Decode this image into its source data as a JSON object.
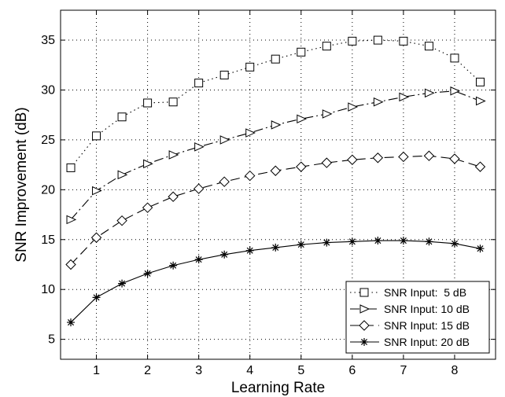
{
  "chart_data": {
    "type": "line",
    "title": "",
    "xlabel": "Learning Rate",
    "ylabel": "SNR Improvement (dB)",
    "xlim": [
      0.3,
      8.8
    ],
    "ylim": [
      3,
      38
    ],
    "xticks": [
      1,
      2,
      3,
      4,
      5,
      6,
      7,
      8
    ],
    "yticks": [
      5,
      10,
      15,
      20,
      25,
      30,
      35
    ],
    "grid": true,
    "legend_position": "bottom-right",
    "x": [
      0.5,
      1.0,
      1.5,
      2.0,
      2.5,
      3.0,
      3.5,
      4.0,
      4.5,
      5.0,
      5.5,
      6.0,
      6.5,
      7.0,
      7.5,
      8.0,
      8.5
    ],
    "series": [
      {
        "name": "SNR Input:  5 dB",
        "marker": "square",
        "line_style": "dotted",
        "values": [
          22.2,
          25.4,
          27.3,
          28.7,
          28.8,
          30.7,
          31.5,
          32.3,
          33.1,
          33.8,
          34.4,
          34.9,
          35.0,
          34.9,
          34.4,
          33.2,
          30.8
        ]
      },
      {
        "name": "SNR Input: 10 dB",
        "marker": "triangle-right",
        "line_style": "dashdot",
        "values": [
          17.0,
          19.9,
          21.5,
          22.6,
          23.5,
          24.3,
          25.0,
          25.7,
          26.5,
          27.1,
          27.6,
          28.3,
          28.8,
          29.3,
          29.7,
          29.9,
          28.9
        ]
      },
      {
        "name": "SNR Input: 15 dB",
        "marker": "diamond",
        "line_style": "dashed",
        "values": [
          12.5,
          15.2,
          16.9,
          18.2,
          19.3,
          20.1,
          20.8,
          21.4,
          21.9,
          22.3,
          22.7,
          23.0,
          23.2,
          23.3,
          23.4,
          23.1,
          22.3
        ]
      },
      {
        "name": "SNR Input: 20 dB",
        "marker": "asterisk",
        "line_style": "solid",
        "values": [
          6.7,
          9.2,
          10.6,
          11.6,
          12.4,
          13.0,
          13.5,
          13.9,
          14.2,
          14.5,
          14.7,
          14.8,
          14.9,
          14.9,
          14.8,
          14.6,
          14.1
        ]
      }
    ]
  }
}
